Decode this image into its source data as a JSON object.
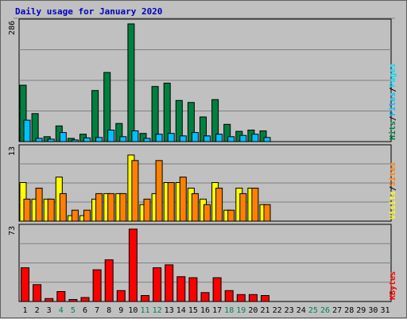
{
  "chart_data": {
    "type": "bar",
    "title": "Daily usage for January 2020",
    "categories": [
      "1",
      "2",
      "3",
      "4",
      "5",
      "6",
      "7",
      "8",
      "9",
      "10",
      "11",
      "12",
      "13",
      "14",
      "15",
      "16",
      "17",
      "18",
      "19",
      "20",
      "21",
      "22",
      "23",
      "24",
      "25",
      "26",
      "27",
      "28",
      "29",
      "30",
      "31"
    ],
    "weekend_days": [
      "4",
      "5",
      "11",
      "12",
      "18",
      "19",
      "25",
      "26"
    ],
    "panels": [
      {
        "name": "hits",
        "ymax_label": "286",
        "ymax": 286,
        "legend": [
          "Pages",
          "Files",
          "Hits"
        ],
        "series": [
          {
            "name": "Hits",
            "color": "#008040",
            "values": [
              137,
              68,
              12,
              38,
              8,
              18,
              124,
              168,
              44,
              286,
              20,
              134,
              142,
              100,
              95,
              60,
              102,
              42,
              25,
              28,
              26,
              0,
              0,
              0,
              0,
              0,
              0,
              0,
              0,
              0,
              0
            ]
          },
          {
            "name": "Files",
            "color": "#00c0ff",
            "values": [
              52,
              8,
              6,
              22,
              4,
              9,
              10,
              28,
              12,
              26,
              8,
              18,
              20,
              14,
              22,
              14,
              18,
              12,
              15,
              18,
              10,
              0,
              0,
              0,
              0,
              0,
              0,
              0,
              0,
              0,
              0
            ]
          },
          {
            "name": "Pages",
            "color": "#00e0ff",
            "values": [
              0,
              0,
              0,
              0,
              0,
              0,
              0,
              0,
              0,
              0,
              0,
              0,
              0,
              0,
              0,
              0,
              0,
              0,
              0,
              0,
              0,
              0,
              0,
              0,
              0,
              0,
              0,
              0,
              0,
              0,
              0
            ]
          }
        ]
      },
      {
        "name": "visits",
        "ymax_label": "13",
        "ymax": 13,
        "legend": [
          "Sites",
          "Visits"
        ],
        "series": [
          {
            "name": "Visits",
            "color": "#ffff00",
            "values": [
              7,
              4,
              4,
              8,
              1,
              1,
              4,
              5,
              5,
              12,
              3,
              5,
              7,
              7,
              6,
              4,
              7,
              2,
              6,
              6,
              3,
              0,
              0,
              0,
              0,
              0,
              0,
              0,
              0,
              0,
              0
            ]
          },
          {
            "name": "Sites",
            "color": "#ff8000",
            "values": [
              4,
              6,
              4,
              5,
              2,
              2,
              5,
              5,
              5,
              11,
              4,
              11,
              7,
              8,
              5,
              3,
              6,
              2,
              5,
              6,
              3,
              0,
              0,
              0,
              0,
              0,
              0,
              0,
              0,
              0,
              0
            ]
          }
        ]
      },
      {
        "name": "kbytes",
        "ymax_label": "73",
        "ymax": 73,
        "legend": [
          "KBytes"
        ],
        "series": [
          {
            "name": "KBytes",
            "color": "#ff0000",
            "values": [
              34,
              17,
              3,
              10,
              2,
              4,
              32,
              42,
              11,
              73,
              6,
              34,
              37,
              25,
              24,
              9,
              24,
              11,
              7,
              7,
              6,
              0,
              0,
              0,
              0,
              0,
              0,
              0,
              0,
              0,
              0
            ]
          }
        ]
      }
    ]
  }
}
